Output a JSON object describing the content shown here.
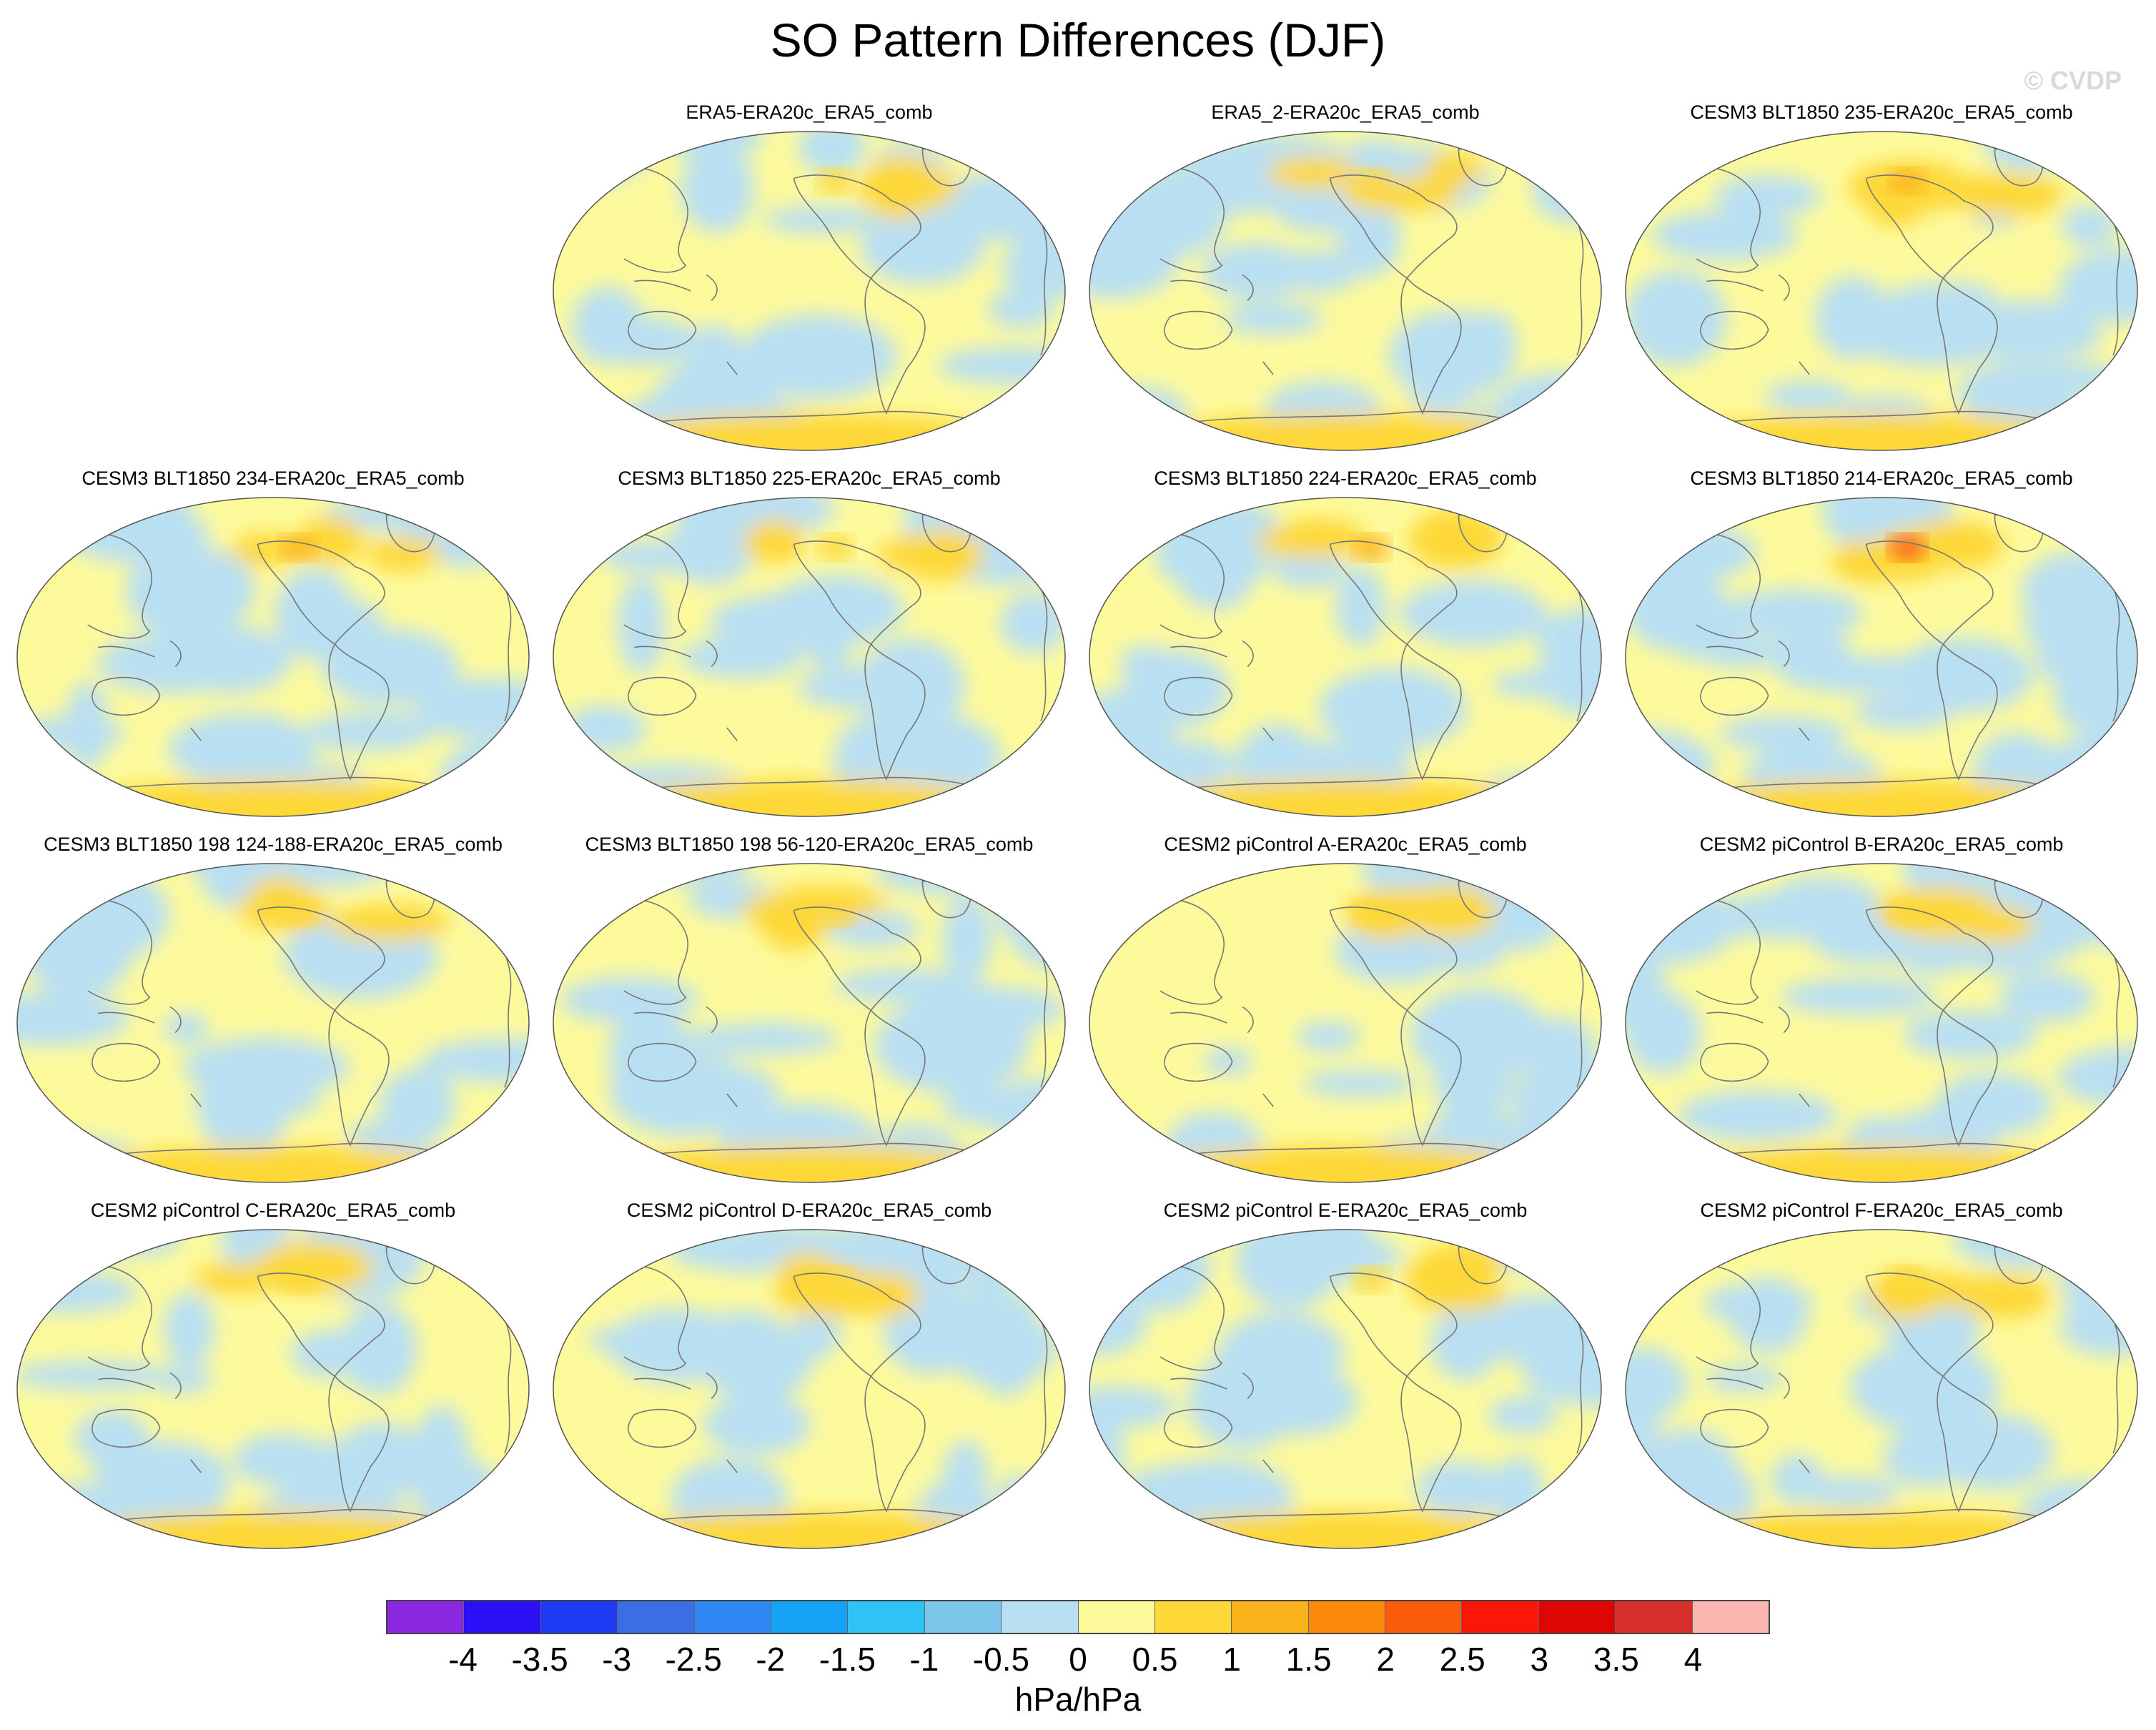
{
  "figure": {
    "title": "SO Pattern Differences (DJF)",
    "watermark": "© CVDP",
    "units": "hPa/hPa"
  },
  "colorbar": {
    "colors": [
      "#8b27e0",
      "#2a0ff7",
      "#1f3cf5",
      "#3d6de3",
      "#2e87f2",
      "#15a4f5",
      "#2ec2f6",
      "#7cc6ec",
      "#b9dff2",
      "#fdfa9c",
      "#fdd837",
      "#fbb31c",
      "#fc8a0a",
      "#fc5d0a",
      "#fc160a",
      "#de0505",
      "#d7302a",
      "#fcb6b2"
    ],
    "labels": [
      "-4",
      "-3.5",
      "-3",
      "-2.5",
      "-2",
      "-1.5",
      "-1",
      "-0.5",
      "0",
      "0.5",
      "1",
      "1.5",
      "2",
      "2.5",
      "3",
      "3.5",
      "4"
    ]
  },
  "panels": [
    {
      "title": "ERA5-ERA20c_ERA5_comb",
      "row": 0,
      "col": 1,
      "seed": 3,
      "max_level": 1
    },
    {
      "title": "ERA5_2-ERA20c_ERA5_comb",
      "row": 0,
      "col": 2,
      "seed": 7,
      "max_level": 1
    },
    {
      "title": "CESM3 BLT1850 235-ERA20c_ERA5_comb",
      "row": 0,
      "col": 3,
      "seed": 11,
      "max_level": 1.5
    },
    {
      "title": "CESM3 BLT1850 234-ERA20c_ERA5_comb",
      "row": 1,
      "col": 0,
      "seed": 13,
      "max_level": 1.5
    },
    {
      "title": "CESM3 BLT1850 225-ERA20c_ERA5_comb",
      "row": 1,
      "col": 1,
      "seed": 17,
      "max_level": 1
    },
    {
      "title": "CESM3 BLT1850 224-ERA20c_ERA5_comb",
      "row": 1,
      "col": 2,
      "seed": 19,
      "max_level": 1.5
    },
    {
      "title": "CESM3 BLT1850 214-ERA20c_ERA5_comb",
      "row": 1,
      "col": 3,
      "seed": 23,
      "max_level": 2.5
    },
    {
      "title": "CESM3 BLT1850 198 124-188-ERA20c_ERA5_comb",
      "row": 2,
      "col": 0,
      "seed": 29,
      "max_level": 1
    },
    {
      "title": "CESM3 BLT1850 198 56-120-ERA20c_ERA5_comb",
      "row": 2,
      "col": 1,
      "seed": 31,
      "max_level": 1
    },
    {
      "title": "CESM2 piControl A-ERA20c_ERA5_comb",
      "row": 2,
      "col": 2,
      "seed": 37,
      "max_level": 1
    },
    {
      "title": "CESM2 piControl B-ERA20c_ERA5_comb",
      "row": 2,
      "col": 3,
      "seed": 41,
      "max_level": 1
    },
    {
      "title": "CESM2 piControl C-ERA20c_ERA5_comb",
      "row": 3,
      "col": 0,
      "seed": 43,
      "max_level": 1
    },
    {
      "title": "CESM2 piControl D-ERA20c_ERA5_comb",
      "row": 3,
      "col": 1,
      "seed": 47,
      "max_level": 1
    },
    {
      "title": "CESM2 piControl E-ERA20c_ERA5_comb",
      "row": 3,
      "col": 2,
      "seed": 53,
      "max_level": 1
    },
    {
      "title": "CESM2 piControl F-ERA20c_ERA5_comb",
      "row": 3,
      "col": 3,
      "seed": 59,
      "max_level": 1
    }
  ]
}
